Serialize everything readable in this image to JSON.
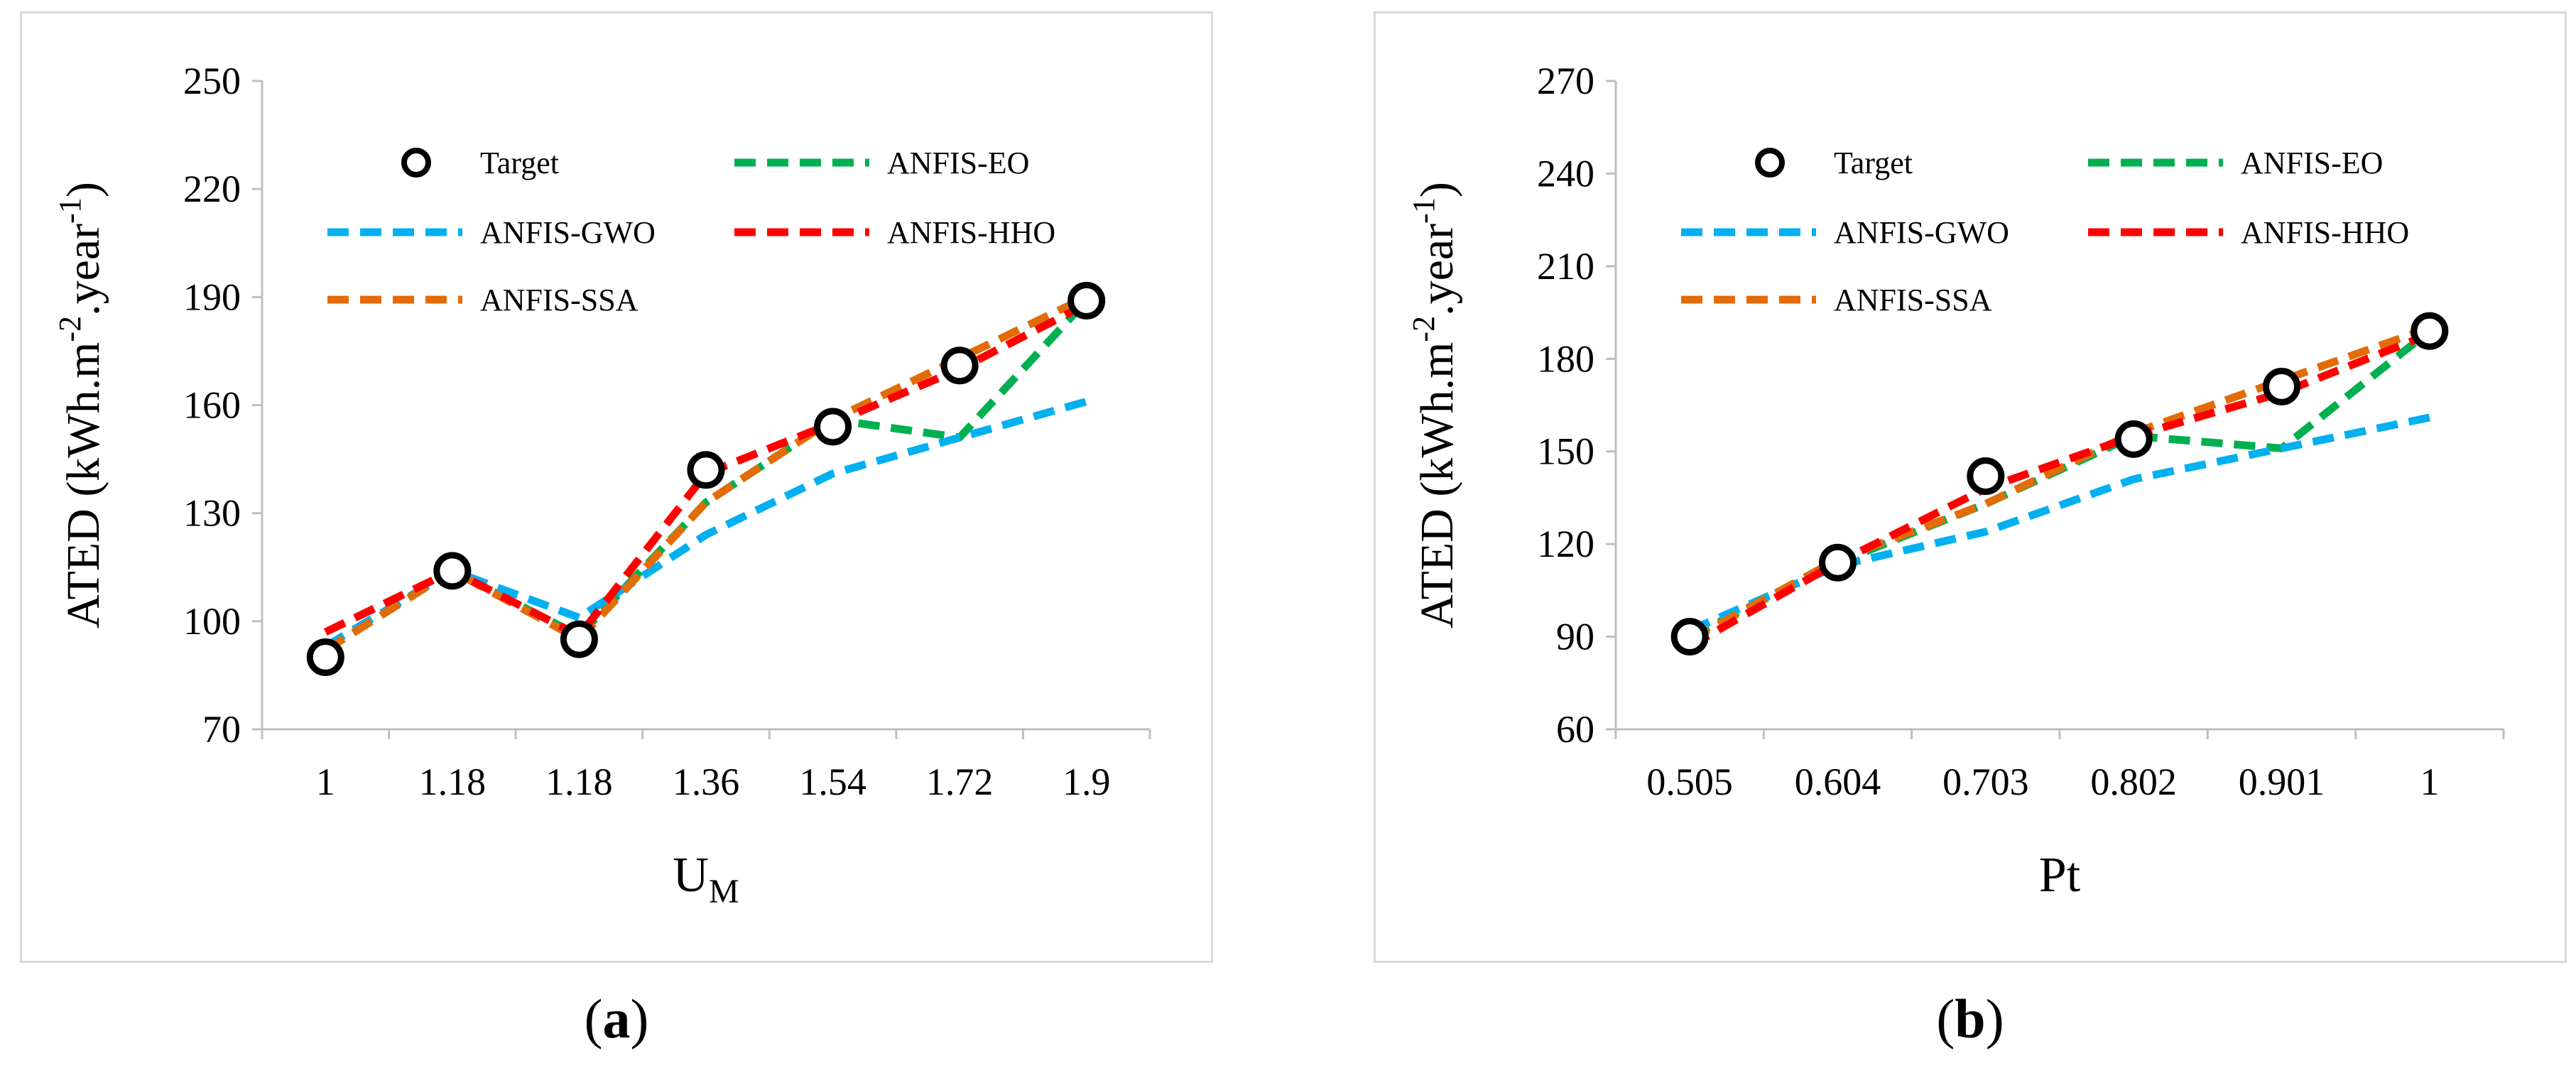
{
  "charts": [
    {
      "panel": "a",
      "panel_label": "a",
      "xlabel_main": "U",
      "xlabel_sub": "M",
      "ylabel_main": "ATED (kWh.m",
      "ylabel_sup1": "-2",
      "ylabel_mid": ".year",
      "ylabel_sup2": "-1",
      "ylabel_end": ")"
    },
    {
      "panel": "b",
      "panel_label": "b",
      "xlabel_main": "Pt",
      "xlabel_sub": "",
      "ylabel_main": "ATED (kWh.m",
      "ylabel_sup1": "-2",
      "ylabel_mid": ".year",
      "ylabel_sup2": "-1",
      "ylabel_end": ")"
    }
  ],
  "chart_data": [
    {
      "type": "line",
      "title": "",
      "xlabel": "U_M",
      "ylabel": "ATED (kWh.m-2.year-1)",
      "categories": [
        "1",
        "1.18",
        "1.18",
        "1.36",
        "1.54",
        "1.72",
        "1.9"
      ],
      "ylim": [
        70,
        250
      ],
      "yticks": [
        70,
        100,
        130,
        160,
        190,
        220,
        250
      ],
      "legend": "top-inside",
      "series": [
        {
          "name": "Target",
          "marker": "circle",
          "color": "#000000",
          "values": [
            90,
            114,
            95,
            142,
            154,
            171,
            189
          ]
        },
        {
          "name": "ANFIS-EO",
          "color": "#00b050",
          "values": [
            92,
            114,
            96,
            133,
            156,
            151,
            189
          ]
        },
        {
          "name": "ANFIS-GWO",
          "color": "#00b0f0",
          "values": [
            93,
            114,
            101,
            124,
            141,
            151,
            161
          ]
        },
        {
          "name": "ANFIS-HHO",
          "color": "#ff0000",
          "values": [
            97,
            114,
            96,
            141,
            155,
            170,
            188
          ]
        },
        {
          "name": "ANFIS-SSA",
          "color": "#e36c09",
          "values": [
            92,
            114,
            95,
            133,
            156,
            173,
            190
          ]
        }
      ]
    },
    {
      "type": "line",
      "title": "",
      "xlabel": "Pt",
      "ylabel": "ATED (kWh.m-2.year-1)",
      "categories": [
        "0.505",
        "0.604",
        "0.703",
        "0.802",
        "0.901",
        "1"
      ],
      "ylim": [
        60,
        270
      ],
      "yticks": [
        60,
        90,
        120,
        150,
        180,
        210,
        240,
        270
      ],
      "legend": "top-inside",
      "series": [
        {
          "name": "Target",
          "marker": "circle",
          "color": "#000000",
          "values": [
            90,
            114,
            142,
            154,
            171,
            189
          ]
        },
        {
          "name": "ANFIS-EO",
          "color": "#00b050",
          "values": [
            90,
            114,
            133,
            155,
            151,
            189
          ]
        },
        {
          "name": "ANFIS-GWO",
          "color": "#00b0f0",
          "values": [
            92,
            113,
            124,
            141,
            151,
            161
          ]
        },
        {
          "name": "ANFIS-HHO",
          "color": "#ff0000",
          "values": [
            87,
            114,
            138,
            155,
            169,
            188
          ]
        },
        {
          "name": "ANFIS-SSA",
          "color": "#e36c09",
          "values": [
            89,
            115,
            133,
            156,
            173,
            190
          ]
        }
      ]
    }
  ]
}
